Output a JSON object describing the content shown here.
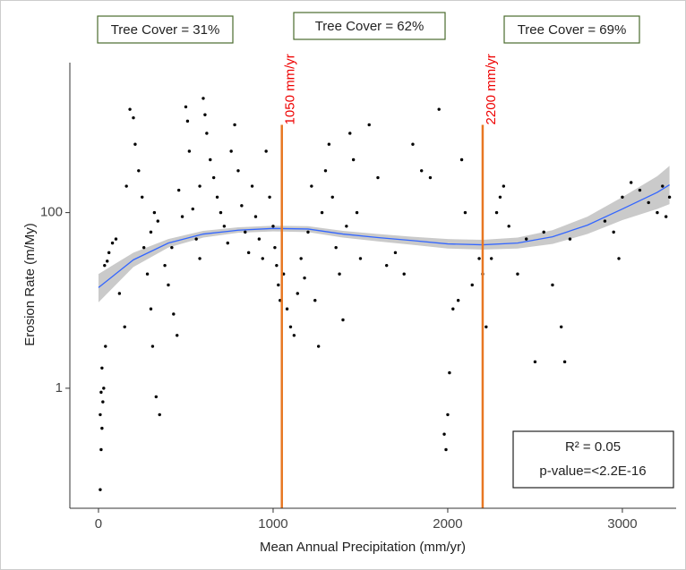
{
  "chart_data": {
    "type": "scatter",
    "xlabel": "Mean Annual Precipitation  (mm/yr)",
    "ylabel": "Erosion Rate (m/My)",
    "xlim": [
      -164,
      3308
    ],
    "ylim": [
      0.043,
      5100
    ],
    "ylog": true,
    "xticks": [
      0,
      1000,
      2000,
      3000
    ],
    "yticks": [
      1,
      100
    ],
    "series": [
      {
        "color": "#000000",
        "x": [
          10,
          15,
          20,
          10,
          25,
          15,
          30,
          20,
          40,
          35,
          50,
          60,
          80,
          100,
          120,
          150,
          160,
          180,
          200,
          210,
          230,
          250,
          260,
          280,
          300,
          310,
          330,
          350,
          300,
          320,
          340,
          380,
          400,
          420,
          430,
          450,
          460,
          480,
          500,
          510,
          520,
          540,
          560,
          580,
          580,
          600,
          610,
          620,
          640,
          660,
          680,
          700,
          720,
          740,
          760,
          780,
          800,
          820,
          840,
          860,
          880,
          900,
          920,
          940,
          960,
          980,
          1000,
          1010,
          1020,
          1030,
          1040,
          1060,
          1080,
          1100,
          1120,
          1140,
          1160,
          1180,
          1200,
          1220,
          1240,
          1260,
          1280,
          1300,
          1320,
          1340,
          1360,
          1380,
          1400,
          1420,
          1440,
          1460,
          1480,
          1500,
          1550,
          1600,
          1650,
          1700,
          1750,
          1800,
          1850,
          1900,
          1950,
          1980,
          1990,
          2000,
          2010,
          2030,
          2060,
          2080,
          2100,
          2140,
          2180,
          2200,
          2220,
          2250,
          2280,
          2300,
          2320,
          2350,
          2400,
          2450,
          2500,
          2550,
          2600,
          2650,
          2670,
          2700,
          2900,
          2950,
          2980,
          3000,
          3050,
          3100,
          3150,
          3200,
          3230,
          3250,
          3270
        ],
        "values": [
          0.07,
          0.2,
          0.35,
          0.5,
          0.7,
          0.9,
          1,
          1.7,
          3,
          25,
          28,
          35,
          45,
          50,
          12,
          5,
          200,
          1500,
          1200,
          600,
          300,
          150,
          40,
          20,
          8,
          3,
          0.8,
          0.5,
          60,
          100,
          80,
          25,
          15,
          40,
          7,
          4,
          180,
          90,
          1600,
          1100,
          500,
          110,
          50,
          30,
          200,
          2000,
          1300,
          800,
          400,
          250,
          150,
          100,
          70,
          45,
          500,
          1000,
          300,
          120,
          60,
          35,
          200,
          90,
          50,
          30,
          500,
          150,
          70,
          40,
          25,
          15,
          10,
          20,
          8,
          5,
          4,
          12,
          30,
          18,
          60,
          200,
          10,
          3,
          100,
          300,
          600,
          150,
          40,
          20,
          6,
          70,
          800,
          400,
          100,
          30,
          1000,
          250,
          25,
          35,
          20,
          600,
          300,
          250,
          1500,
          0.3,
          0.2,
          0.5,
          1.5,
          8,
          10,
          400,
          100,
          15,
          30,
          20,
          5,
          30,
          100,
          150,
          200,
          70,
          20,
          50,
          2,
          60,
          15,
          5,
          2,
          50,
          80,
          60,
          30,
          150,
          220,
          180,
          130,
          100,
          200,
          90,
          150
        ]
      }
    ],
    "fit": {
      "color": "#3366ff",
      "band_color": "#bdbdbd",
      "x": [
        0,
        200,
        400,
        600,
        800,
        1000,
        1200,
        1400,
        1600,
        1800,
        2000,
        2200,
        2400,
        2600,
        2800,
        3000,
        3200,
        3270
      ],
      "values": [
        14,
        29,
        45,
        57,
        63,
        66,
        65,
        57,
        52,
        48,
        44,
        43,
        45,
        53,
        72,
        110,
        170,
        207
      ],
      "lower": [
        9.5,
        24,
        40,
        52,
        59,
        61,
        60,
        52,
        47,
        43,
        39,
        38,
        39,
        44,
        57,
        82,
        110,
        125
      ],
      "upper": [
        20,
        35,
        50,
        62,
        68,
        71,
        70,
        62,
        57,
        53,
        50,
        49,
        52,
        63,
        90,
        150,
        260,
        340
      ]
    },
    "vlines": [
      {
        "x": 1050,
        "top": 1000,
        "label": "1050 mm/yr",
        "color": "#e87722"
      },
      {
        "x": 2200,
        "top": 1000,
        "label": "2200 mm/yr",
        "color": "#e87722"
      }
    ],
    "annotations": [
      "Tree Cover = 31%",
      "Tree Cover = 62%",
      "Tree Cover = 69%"
    ],
    "stats": [
      "R² = 0.05",
      "p-value=<2.2E-16"
    ]
  }
}
